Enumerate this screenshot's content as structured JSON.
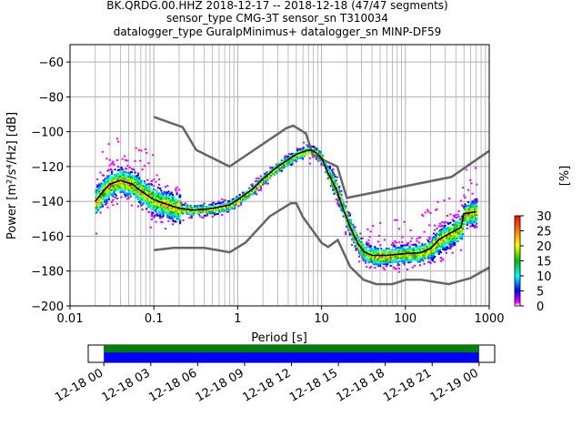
{
  "title_lines": [
    "BK.QRDG.00.HHZ   2018-12-17 -- 2018-12-18  (47/47 segments)",
    "sensor_type CMG-3T sensor_sn T310034",
    "datalogger_type GuralpMinimus+ datalogger_sn MINP-DF59"
  ],
  "chart_data": {
    "type": "heatmap",
    "title": "BK.QRDG.00.HHZ   2018-12-17 -- 2018-12-18  (47/47 segments)",
    "subtitle": "sensor_type CMG-3T sensor_sn T310034 / datalogger_type GuralpMinimus+ datalogger_sn MINP-DF59",
    "xlabel": "Period [s]",
    "ylabel": "Power [m²/s⁴/Hz] [dB]",
    "xscale": "log",
    "xlim": [
      0.01,
      1000
    ],
    "ylim": [
      -200,
      -50
    ],
    "grid": true,
    "x_ticks": [
      {
        "v": 0.01,
        "label": "0.01"
      },
      {
        "v": 0.1,
        "label": "0.1"
      },
      {
        "v": 1,
        "label": "1"
      },
      {
        "v": 10,
        "label": "10"
      },
      {
        "v": 100,
        "label": "100"
      },
      {
        "v": 1000,
        "label": "1000"
      }
    ],
    "y_ticks": [
      {
        "v": -60,
        "label": "−60"
      },
      {
        "v": -80,
        "label": "−80"
      },
      {
        "v": -100,
        "label": "−100"
      },
      {
        "v": -120,
        "label": "−120"
      },
      {
        "v": -140,
        "label": "−140"
      },
      {
        "v": -160,
        "label": "−160"
      },
      {
        "v": -180,
        "label": "−180"
      },
      {
        "v": -200,
        "label": "−200"
      }
    ],
    "nhnm": [
      [
        0.1,
        -91.5
      ],
      [
        0.22,
        -97.4
      ],
      [
        0.32,
        -110.5
      ],
      [
        0.8,
        -120
      ],
      [
        3.8,
        -98
      ],
      [
        4.6,
        -96.5
      ],
      [
        6.5,
        -101
      ],
      [
        7.9,
        -113.5
      ],
      [
        15.4,
        -120
      ],
      [
        20,
        -138
      ],
      [
        354,
        -126
      ],
      [
        1000,
        -111
      ]
    ],
    "nlnm": [
      [
        0.1,
        -168
      ],
      [
        0.17,
        -166.7
      ],
      [
        0.4,
        -166.7
      ],
      [
        0.8,
        -169.2
      ],
      [
        1.24,
        -163.7
      ],
      [
        2.4,
        -148.6
      ],
      [
        4.3,
        -141.1
      ],
      [
        5,
        -141.1
      ],
      [
        6,
        -149
      ],
      [
        10,
        -163.8
      ],
      [
        12,
        -166.2
      ],
      [
        15.6,
        -162.1
      ],
      [
        21.9,
        -177.5
      ],
      [
        31.6,
        -185
      ],
      [
        45,
        -187.5
      ],
      [
        70,
        -187.5
      ],
      [
        101,
        -185
      ],
      [
        154,
        -185
      ],
      [
        328,
        -187.5
      ],
      [
        600,
        -184
      ],
      [
        1000,
        -178
      ]
    ],
    "mode_line": [
      [
        0.02,
        -140
      ],
      [
        0.025,
        -134
      ],
      [
        0.03,
        -130
      ],
      [
        0.04,
        -128
      ],
      [
        0.055,
        -130
      ],
      [
        0.07,
        -134
      ],
      [
        0.1,
        -139
      ],
      [
        0.15,
        -142
      ],
      [
        0.2,
        -144
      ],
      [
        0.3,
        -145
      ],
      [
        0.5,
        -144
      ],
      [
        0.8,
        -142
      ],
      [
        1,
        -139
      ],
      [
        1.5,
        -133
      ],
      [
        2,
        -127
      ],
      [
        3,
        -120
      ],
      [
        4,
        -116
      ],
      [
        5,
        -113
      ],
      [
        6,
        -111.5
      ],
      [
        7,
        -110.5
      ],
      [
        8,
        -111
      ],
      [
        10,
        -115
      ],
      [
        12,
        -124
      ],
      [
        15,
        -133
      ],
      [
        18,
        -144
      ],
      [
        22,
        -155
      ],
      [
        27,
        -164
      ],
      [
        32,
        -169
      ],
      [
        40,
        -171
      ],
      [
        60,
        -171
      ],
      [
        100,
        -170
      ],
      [
        150,
        -169.5
      ],
      [
        200,
        -167
      ],
      [
        250,
        -162
      ],
      [
        350,
        -158
      ],
      [
        460,
        -155
      ],
      [
        500,
        -147
      ],
      [
        700,
        -146
      ]
    ],
    "colorbar": {
      "label": "[%]",
      "range": [
        0,
        30
      ],
      "ticks": [
        {
          "v": 0,
          "label": "0"
        },
        {
          "v": 5,
          "label": "5"
        },
        {
          "v": 10,
          "label": "10"
        },
        {
          "v": 15,
          "label": "15"
        },
        {
          "v": 20,
          "label": "20"
        },
        {
          "v": 25,
          "label": "25"
        },
        {
          "v": 30,
          "label": "30"
        }
      ]
    },
    "timeline": {
      "start": "2018-12-17 23:00",
      "end": "2018-12-19 01:00",
      "data_start": "2018-12-18 00:00",
      "data_end": "2018-12-19 00:00",
      "ticks": [
        {
          "h": 0,
          "label": "12-18 00"
        },
        {
          "h": 3,
          "label": "12-18 03"
        },
        {
          "h": 6,
          "label": "12-18 06"
        },
        {
          "h": 9,
          "label": "12-18 09"
        },
        {
          "h": 12,
          "label": "12-18 12"
        },
        {
          "h": 15,
          "label": "12-18 15"
        },
        {
          "h": 18,
          "label": "12-18 18"
        },
        {
          "h": 21,
          "label": "12-18 21"
        },
        {
          "h": 24,
          "label": "12-19 00"
        }
      ],
      "colors": {
        "coverage": "#0000ff",
        "processed": "#008000"
      }
    }
  }
}
